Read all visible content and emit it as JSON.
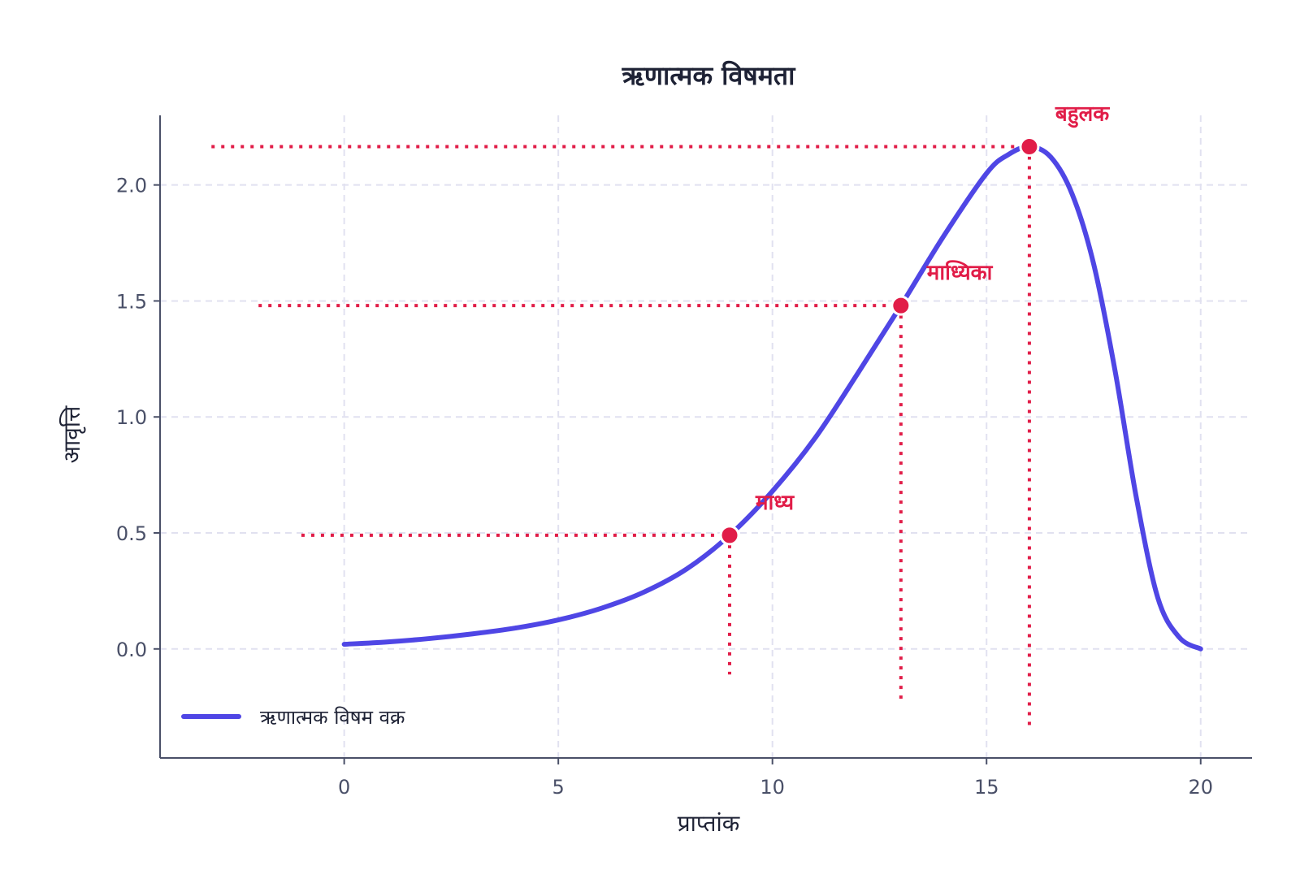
{
  "chart_data": {
    "type": "line",
    "title": "ऋणात्मक विषमता",
    "xlabel": "प्राप्तांक",
    "ylabel": "आवृत्ति",
    "xlim": [
      -4.3,
      21.2
    ],
    "ylim": [
      -0.47,
      2.3
    ],
    "xticks": [
      0,
      5,
      10,
      15,
      20
    ],
    "yticks": [
      0.0,
      0.5,
      1.0,
      1.5,
      2.0
    ],
    "grid": true,
    "legend": "bottom-left",
    "colors": {
      "curve": "#4f46e5",
      "markers": "#e11d48"
    },
    "series": [
      {
        "name": "ऋणात्मक विषम वक्र",
        "x": [
          0,
          1,
          2,
          3,
          4,
          5,
          6,
          7,
          8,
          9,
          10,
          11,
          12,
          13,
          14,
          15,
          15.5,
          16,
          16.5,
          17,
          17.5,
          18,
          18.5,
          19,
          19.5,
          20
        ],
        "y": [
          0.02,
          0.03,
          0.045,
          0.065,
          0.09,
          0.125,
          0.175,
          0.245,
          0.345,
          0.49,
          0.68,
          0.91,
          1.19,
          1.48,
          1.78,
          2.05,
          2.13,
          2.165,
          2.12,
          1.96,
          1.66,
          1.2,
          0.65,
          0.22,
          0.05,
          0.0
        ]
      }
    ],
    "markers": [
      {
        "label": "माध्य",
        "x": 9,
        "y": 0.49,
        "guide_x_from": -1.0,
        "guide_y_to": -0.11
      },
      {
        "label": "माध्यिका",
        "x": 13,
        "y": 1.48,
        "guide_x_from": -2.0,
        "guide_y_to": -0.22
      },
      {
        "label": "बहुलक",
        "x": 16,
        "y": 2.165,
        "guide_x_from": -3.1,
        "guide_y_to": -0.34
      }
    ]
  }
}
